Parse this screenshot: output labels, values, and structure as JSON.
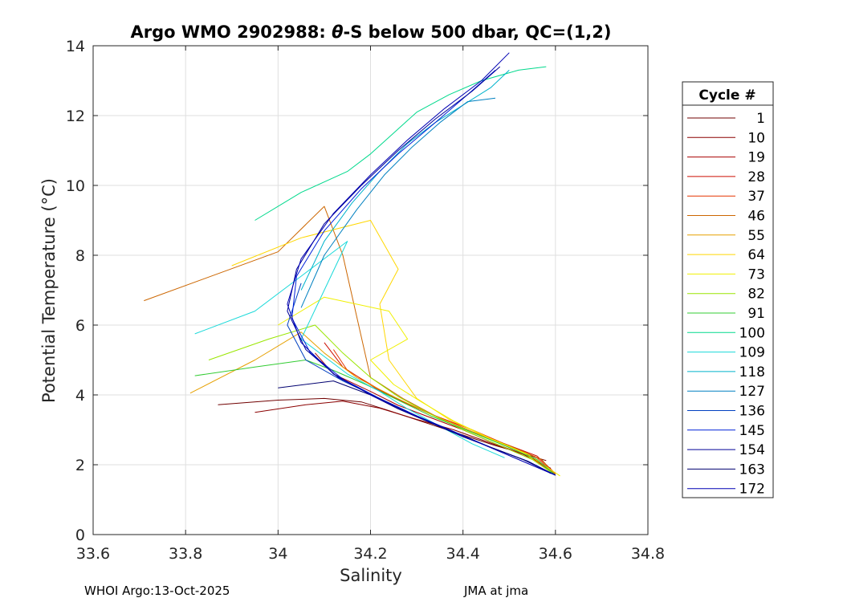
{
  "chart_data": {
    "type": "line",
    "title_prefix": "Argo WMO 2902988: ",
    "title_symbol": "θ",
    "title_suffix": "-S below 500 dbar,  QC=(1,2)",
    "xlabel": "Salinity",
    "ylabel": "Potential Temperature (°C)",
    "xlim": [
      33.6,
      34.8
    ],
    "ylim": [
      0,
      14
    ],
    "xticks": [
      33.6,
      33.8,
      34.0,
      34.2,
      34.4,
      34.6,
      34.8
    ],
    "xtick_labels": [
      "33.6",
      "33.8",
      "34",
      "34.2",
      "34.4",
      "34.6",
      "34.8"
    ],
    "yticks": [
      0,
      2,
      4,
      6,
      8,
      10,
      12,
      14
    ],
    "ytick_labels": [
      "0",
      "2",
      "4",
      "6",
      "8",
      "10",
      "12",
      "14"
    ],
    "grid": true,
    "legend_position": "right",
    "legend_title": "Cycle #",
    "series": [
      {
        "name": "1",
        "color": "#700000",
        "x": [
          33.87,
          34.0,
          34.1,
          34.18,
          34.24,
          34.32,
          34.4,
          34.47,
          34.53,
          34.58
        ],
        "y": [
          3.72,
          3.85,
          3.9,
          3.8,
          3.55,
          3.2,
          2.85,
          2.55,
          2.32,
          2.12
        ]
      },
      {
        "name": "10",
        "color": "#8a0000",
        "x": [
          33.95,
          34.06,
          34.14,
          34.22,
          34.3,
          34.38,
          34.46,
          34.53,
          34.59
        ],
        "y": [
          3.5,
          3.72,
          3.82,
          3.62,
          3.3,
          3.0,
          2.62,
          2.3,
          1.9
        ]
      },
      {
        "name": "19",
        "color": "#a80000",
        "x": [
          34.08,
          34.12,
          34.2,
          34.26,
          34.32,
          34.4,
          34.47,
          34.55,
          34.6
        ],
        "y": [
          5.2,
          4.6,
          4.1,
          3.7,
          3.4,
          3.0,
          2.6,
          2.2,
          1.7
        ]
      },
      {
        "name": "28",
        "color": "#cc0d00",
        "x": [
          34.1,
          34.14,
          34.21,
          34.27,
          34.33,
          34.41,
          34.48,
          34.56,
          34.6
        ],
        "y": [
          5.5,
          4.8,
          4.2,
          3.8,
          3.45,
          3.05,
          2.65,
          2.25,
          1.75
        ]
      },
      {
        "name": "37",
        "color": "#e63300",
        "x": [
          34.12,
          34.15,
          34.22,
          34.28,
          34.34,
          34.42,
          34.49,
          34.56,
          34.6
        ],
        "y": [
          5.3,
          4.7,
          4.15,
          3.75,
          3.4,
          3.0,
          2.6,
          2.2,
          1.72
        ]
      },
      {
        "name": "46",
        "color": "#cc6600",
        "x": [
          33.71,
          34.0,
          34.1,
          34.14,
          34.2,
          34.27,
          34.34,
          34.42,
          34.5,
          34.57,
          34.6
        ],
        "y": [
          6.7,
          8.1,
          9.4,
          8.0,
          4.5,
          3.9,
          3.4,
          2.95,
          2.55,
          2.15,
          1.7
        ]
      },
      {
        "name": "55",
        "color": "#e6a000",
        "x": [
          33.81,
          33.95,
          34.05,
          34.1,
          34.17,
          34.25,
          34.33,
          34.41,
          34.49,
          34.56,
          34.6
        ],
        "y": [
          4.05,
          5.0,
          5.8,
          5.2,
          4.5,
          3.95,
          3.45,
          3.0,
          2.55,
          2.15,
          1.7
        ]
      },
      {
        "name": "64",
        "color": "#ffd700",
        "x": [
          33.9,
          34.05,
          34.2,
          34.26,
          34.22,
          34.24,
          34.3,
          34.37,
          34.45,
          34.53,
          34.6
        ],
        "y": [
          7.7,
          8.5,
          9.0,
          7.6,
          6.6,
          5.0,
          3.9,
          3.3,
          2.8,
          2.35,
          1.7
        ]
      },
      {
        "name": "73",
        "color": "#f0f000",
        "x": [
          34.0,
          34.1,
          34.24,
          34.28,
          34.2,
          34.25,
          34.31,
          34.38,
          34.46,
          34.54,
          34.61
        ],
        "y": [
          6.0,
          6.8,
          6.4,
          5.6,
          5.0,
          4.3,
          3.8,
          3.25,
          2.75,
          2.3,
          1.68
        ]
      },
      {
        "name": "82",
        "color": "#99e600",
        "x": [
          33.85,
          33.98,
          34.08,
          34.14,
          34.2,
          34.26,
          34.33,
          34.4,
          34.48,
          34.55,
          34.6
        ],
        "y": [
          5.0,
          5.6,
          6.0,
          5.2,
          4.5,
          3.95,
          3.45,
          3.0,
          2.55,
          2.15,
          1.7
        ]
      },
      {
        "name": "91",
        "color": "#33cc33",
        "x": [
          33.82,
          33.95,
          34.06,
          34.12,
          34.19,
          34.26,
          34.33,
          34.41,
          34.49,
          34.56,
          34.6
        ],
        "y": [
          4.55,
          4.8,
          5.0,
          4.7,
          4.3,
          3.85,
          3.4,
          2.98,
          2.55,
          2.15,
          1.7
        ]
      },
      {
        "name": "100",
        "color": "#00d98c",
        "x": [
          33.95,
          34.05,
          34.15,
          34.2,
          34.25,
          34.3,
          34.37,
          34.44,
          34.52,
          34.58
        ],
        "y": [
          9.0,
          9.8,
          10.4,
          10.9,
          11.5,
          12.1,
          12.6,
          13.0,
          13.3,
          13.4
        ]
      },
      {
        "name": "109",
        "color": "#1ad9d9",
        "x": [
          33.82,
          33.95,
          34.05,
          34.15,
          34.1,
          34.05,
          34.15,
          34.22,
          34.28,
          34.35,
          34.42,
          34.49
        ],
        "y": [
          5.75,
          6.4,
          7.4,
          8.4,
          7.0,
          5.6,
          4.6,
          4.1,
          3.6,
          3.1,
          2.6,
          2.2
        ]
      },
      {
        "name": "118",
        "color": "#00b3cc",
        "x": [
          34.05,
          34.1,
          34.16,
          34.22,
          34.28,
          34.34,
          34.4,
          34.46,
          34.5
        ],
        "y": [
          7.0,
          8.4,
          9.5,
          10.4,
          11.2,
          11.8,
          12.3,
          12.8,
          13.3
        ]
      },
      {
        "name": "127",
        "color": "#0080c0",
        "x": [
          34.05,
          34.1,
          34.17,
          34.23,
          34.29,
          34.35,
          34.41,
          34.47
        ],
        "y": [
          6.5,
          8.0,
          9.3,
          10.3,
          11.1,
          11.8,
          12.4,
          12.5
        ]
      },
      {
        "name": "136",
        "color": "#0040c0",
        "x": [
          34.05,
          34.02,
          34.06,
          34.14,
          34.22,
          34.3,
          34.38,
          34.46,
          34.54,
          34.6
        ],
        "y": [
          7.2,
          6.0,
          5.0,
          4.4,
          3.9,
          3.4,
          2.95,
          2.5,
          2.1,
          1.7
        ]
      },
      {
        "name": "145",
        "color": "#0020d9",
        "x": [
          34.6,
          34.54,
          34.46,
          34.38,
          34.3,
          34.22,
          34.14,
          34.07,
          34.03,
          34.04,
          34.1,
          34.18,
          34.26,
          34.34,
          34.41,
          34.47
        ],
        "y": [
          1.7,
          2.1,
          2.5,
          2.95,
          3.4,
          3.9,
          4.45,
          5.2,
          6.2,
          7.4,
          8.7,
          9.9,
          10.9,
          11.8,
          12.6,
          13.3
        ]
      },
      {
        "name": "154",
        "color": "#000099",
        "x": [
          34.6,
          34.53,
          34.45,
          34.37,
          34.29,
          34.21,
          34.13,
          34.06,
          34.02,
          34.04,
          34.1,
          34.18,
          34.26,
          34.34,
          34.42,
          34.48
        ],
        "y": [
          1.7,
          2.15,
          2.55,
          3.0,
          3.45,
          3.95,
          4.5,
          5.3,
          6.4,
          7.6,
          8.9,
          10.0,
          11.0,
          11.9,
          12.7,
          13.4
        ]
      },
      {
        "name": "163",
        "color": "#000070",
        "x": [
          34.0,
          34.12,
          34.2,
          34.26,
          34.33,
          34.4,
          34.47,
          34.54,
          34.59
        ],
        "y": [
          4.2,
          4.4,
          4.0,
          3.6,
          3.2,
          2.8,
          2.45,
          2.1,
          1.75
        ]
      },
      {
        "name": "172",
        "color": "#0000b3",
        "x": [
          34.6,
          34.52,
          34.44,
          34.36,
          34.28,
          34.2,
          34.12,
          34.05,
          34.02,
          34.05,
          34.12,
          34.2,
          34.28,
          34.36,
          34.44,
          34.5
        ],
        "y": [
          1.7,
          2.15,
          2.6,
          3.05,
          3.5,
          4.0,
          4.6,
          5.5,
          6.6,
          7.9,
          9.2,
          10.3,
          11.3,
          12.2,
          13.0,
          13.8
        ]
      }
    ]
  },
  "footer": {
    "left": "WHOI Argo:13-Oct-2025",
    "right": "JMA at jma"
  }
}
